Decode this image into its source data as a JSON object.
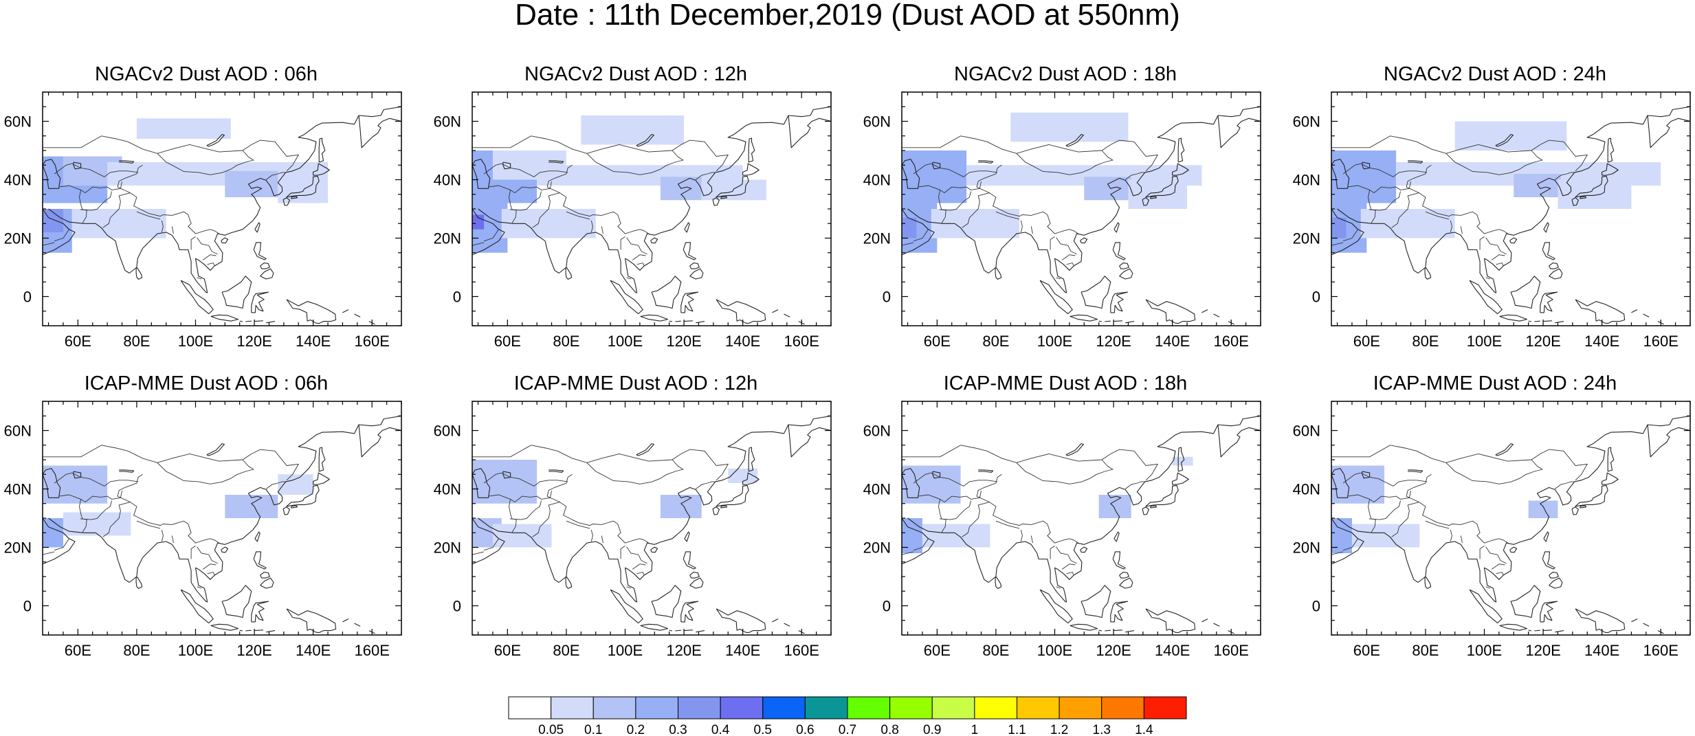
{
  "title": "Date : 11th December,2019 (Dust AOD at 550nm)",
  "panels": [
    {
      "title": "NGACv2 Dust AOD : 06h",
      "model": "NGACv2",
      "hour": "06h"
    },
    {
      "title": "NGACv2 Dust AOD : 12h",
      "model": "NGACv2",
      "hour": "12h"
    },
    {
      "title": "NGACv2 Dust AOD : 18h",
      "model": "NGACv2",
      "hour": "18h"
    },
    {
      "title": "NGACv2 Dust AOD : 24h",
      "model": "NGACv2",
      "hour": "24h"
    },
    {
      "title": "ICAP-MME Dust AOD : 06h",
      "model": "ICAP-MME",
      "hour": "06h"
    },
    {
      "title": "ICAP-MME Dust AOD : 12h",
      "model": "ICAP-MME",
      "hour": "12h"
    },
    {
      "title": "ICAP-MME Dust AOD : 18h",
      "model": "ICAP-MME",
      "hour": "18h"
    },
    {
      "title": "ICAP-MME Dust AOD : 24h",
      "model": "ICAP-MME",
      "hour": "24h"
    }
  ],
  "map": {
    "lon_range": [
      48,
      170
    ],
    "lat_range": [
      -10,
      70
    ],
    "lon_ticks": [
      60,
      80,
      100,
      120,
      140,
      160
    ],
    "lon_tick_labels": [
      "60E",
      "80E",
      "100E",
      "120E",
      "140E",
      "160E"
    ],
    "lat_ticks": [
      0,
      20,
      40,
      60
    ],
    "lat_tick_labels": [
      "0",
      "20N",
      "40N",
      "60N"
    ]
  },
  "colorbar": {
    "levels": [
      "0.05",
      "0.1",
      "0.2",
      "0.3",
      "0.4",
      "0.5",
      "0.6",
      "0.7",
      "0.8",
      "0.9",
      "1",
      "1.1",
      "1.2",
      "1.3",
      "1.4"
    ],
    "colors": [
      "#ffffff",
      "#d2dcfa",
      "#b4c3f5",
      "#96aff5",
      "#8296f0",
      "#6e6ef0",
      "#0a64f5",
      "#0a9696",
      "#64ff00",
      "#96ff00",
      "#c8ff46",
      "#ffff00",
      "#ffc800",
      "#ffa000",
      "#ff7800",
      "#ff1e00"
    ]
  },
  "dust_fields": [
    [
      {
        "lon": [
          48,
          58
        ],
        "lat": [
          15,
          30
        ],
        "level": 3
      },
      {
        "lon": [
          48,
          55
        ],
        "lat": [
          22,
          30
        ],
        "level": 4
      },
      {
        "lon": [
          48,
          70
        ],
        "lat": [
          32,
          48
        ],
        "level": 3
      },
      {
        "lon": [
          55,
          75
        ],
        "lat": [
          38,
          48
        ],
        "level": 2
      },
      {
        "lon": [
          58,
          90
        ],
        "lat": [
          20,
          30
        ],
        "level": 1
      },
      {
        "lon": [
          70,
          145
        ],
        "lat": [
          38,
          46
        ],
        "level": 1
      },
      {
        "lon": [
          110,
          128
        ],
        "lat": [
          34,
          43
        ],
        "level": 2
      },
      {
        "lon": [
          128,
          145
        ],
        "lat": [
          32,
          42
        ],
        "level": 1
      },
      {
        "lon": [
          80,
          112
        ],
        "lat": [
          54,
          61
        ],
        "level": 1
      }
    ],
    [
      {
        "lon": [
          48,
          60
        ],
        "lat": [
          15,
          32
        ],
        "level": 3
      },
      {
        "lon": [
          48,
          52
        ],
        "lat": [
          23,
          28
        ],
        "level": 5
      },
      {
        "lon": [
          48,
          70
        ],
        "lat": [
          32,
          50
        ],
        "level": 3
      },
      {
        "lon": [
          55,
          80
        ],
        "lat": [
          40,
          50
        ],
        "level": 1
      },
      {
        "lon": [
          58,
          90
        ],
        "lat": [
          20,
          30
        ],
        "level": 1
      },
      {
        "lon": [
          70,
          140
        ],
        "lat": [
          38,
          45
        ],
        "level": 1
      },
      {
        "lon": [
          112,
          126
        ],
        "lat": [
          33,
          41
        ],
        "level": 2
      },
      {
        "lon": [
          126,
          148
        ],
        "lat": [
          33,
          40
        ],
        "level": 1
      },
      {
        "lon": [
          85,
          120
        ],
        "lat": [
          52,
          62
        ],
        "level": 1
      }
    ],
    [
      {
        "lon": [
          48,
          60
        ],
        "lat": [
          15,
          32
        ],
        "level": 3
      },
      {
        "lon": [
          48,
          53
        ],
        "lat": [
          20,
          27
        ],
        "level": 4
      },
      {
        "lon": [
          48,
          70
        ],
        "lat": [
          32,
          50
        ],
        "level": 3
      },
      {
        "lon": [
          58,
          88
        ],
        "lat": [
          20,
          30
        ],
        "level": 1
      },
      {
        "lon": [
          70,
          150
        ],
        "lat": [
          38,
          45
        ],
        "level": 1
      },
      {
        "lon": [
          110,
          126
        ],
        "lat": [
          33,
          41
        ],
        "level": 2
      },
      {
        "lon": [
          125,
          145
        ],
        "lat": [
          30,
          40
        ],
        "level": 1
      },
      {
        "lon": [
          85,
          125
        ],
        "lat": [
          53,
          63
        ],
        "level": 1
      }
    ],
    [
      {
        "lon": [
          48,
          60
        ],
        "lat": [
          15,
          32
        ],
        "level": 3
      },
      {
        "lon": [
          48,
          53
        ],
        "lat": [
          20,
          27
        ],
        "level": 4
      },
      {
        "lon": [
          48,
          70
        ],
        "lat": [
          32,
          50
        ],
        "level": 3
      },
      {
        "lon": [
          58,
          90
        ],
        "lat": [
          20,
          30
        ],
        "level": 1
      },
      {
        "lon": [
          70,
          160
        ],
        "lat": [
          38,
          46
        ],
        "level": 1
      },
      {
        "lon": [
          110,
          126
        ],
        "lat": [
          34,
          42
        ],
        "level": 2
      },
      {
        "lon": [
          125,
          150
        ],
        "lat": [
          30,
          40
        ],
        "level": 1
      },
      {
        "lon": [
          90,
          128
        ],
        "lat": [
          50,
          60
        ],
        "level": 1
      }
    ],
    [
      {
        "lon": [
          48,
          55
        ],
        "lat": [
          20,
          30
        ],
        "level": 3
      },
      {
        "lon": [
          48,
          70
        ],
        "lat": [
          35,
          48
        ],
        "level": 2
      },
      {
        "lon": [
          55,
          78
        ],
        "lat": [
          24,
          32
        ],
        "level": 1
      },
      {
        "lon": [
          110,
          128
        ],
        "lat": [
          30,
          38
        ],
        "level": 2
      },
      {
        "lon": [
          128,
          140
        ],
        "lat": [
          38,
          45
        ],
        "level": 1
      }
    ],
    [
      {
        "lon": [
          48,
          58
        ],
        "lat": [
          20,
          30
        ],
        "level": 2
      },
      {
        "lon": [
          48,
          70
        ],
        "lat": [
          35,
          50
        ],
        "level": 2
      },
      {
        "lon": [
          55,
          75
        ],
        "lat": [
          20,
          28
        ],
        "level": 1
      },
      {
        "lon": [
          112,
          126
        ],
        "lat": [
          30,
          38
        ],
        "level": 2
      },
      {
        "lon": [
          135,
          145
        ],
        "lat": [
          42,
          47
        ],
        "level": 1
      }
    ],
    [
      {
        "lon": [
          48,
          55
        ],
        "lat": [
          18,
          30
        ],
        "level": 3
      },
      {
        "lon": [
          48,
          68
        ],
        "lat": [
          35,
          48
        ],
        "level": 2
      },
      {
        "lon": [
          55,
          78
        ],
        "lat": [
          20,
          28
        ],
        "level": 1
      },
      {
        "lon": [
          115,
          126
        ],
        "lat": [
          30,
          38
        ],
        "level": 2
      },
      {
        "lon": [
          140,
          147
        ],
        "lat": [
          48,
          51
        ],
        "level": 1
      }
    ],
    [
      {
        "lon": [
          48,
          55
        ],
        "lat": [
          18,
          30
        ],
        "level": 3
      },
      {
        "lon": [
          48,
          66
        ],
        "lat": [
          35,
          48
        ],
        "level": 2
      },
      {
        "lon": [
          55,
          78
        ],
        "lat": [
          20,
          28
        ],
        "level": 1
      },
      {
        "lon": [
          115,
          125
        ],
        "lat": [
          30,
          36
        ],
        "level": 2
      }
    ]
  ]
}
